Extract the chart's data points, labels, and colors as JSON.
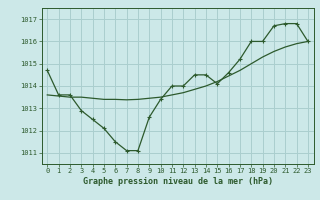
{
  "title": "Graphe pression niveau de la mer (hPa)",
  "background_color": "#cce8e8",
  "grid_color": "#aacece",
  "line_color": "#2d5a2d",
  "x_data": [
    0,
    1,
    2,
    3,
    4,
    5,
    6,
    7,
    8,
    9,
    10,
    11,
    12,
    13,
    14,
    15,
    16,
    17,
    18,
    19,
    20,
    21,
    22,
    23
  ],
  "y_main": [
    1014.7,
    1013.6,
    1013.6,
    1012.9,
    1012.5,
    1012.1,
    1011.5,
    1011.1,
    1011.1,
    1012.6,
    1013.4,
    1014.0,
    1014.0,
    1014.5,
    1014.5,
    1014.1,
    1014.6,
    1015.2,
    1016.0,
    1016.0,
    1016.7,
    1016.8,
    1016.8,
    1016.0
  ],
  "y_trend": [
    1013.6,
    1013.55,
    1013.5,
    1013.5,
    1013.45,
    1013.4,
    1013.4,
    1013.38,
    1013.4,
    1013.45,
    1013.5,
    1013.6,
    1013.7,
    1013.85,
    1014.0,
    1014.2,
    1014.45,
    1014.7,
    1015.0,
    1015.3,
    1015.55,
    1015.75,
    1015.9,
    1016.0
  ],
  "ylim": [
    1010.5,
    1017.5
  ],
  "xlim": [
    -0.5,
    23.5
  ],
  "yticks": [
    1011,
    1012,
    1013,
    1014,
    1015,
    1016,
    1017
  ],
  "xticks": [
    0,
    1,
    2,
    3,
    4,
    5,
    6,
    7,
    8,
    9,
    10,
    11,
    12,
    13,
    14,
    15,
    16,
    17,
    18,
    19,
    20,
    21,
    22,
    23
  ],
  "tick_fontsize": 5.0,
  "label_fontsize": 6.0
}
